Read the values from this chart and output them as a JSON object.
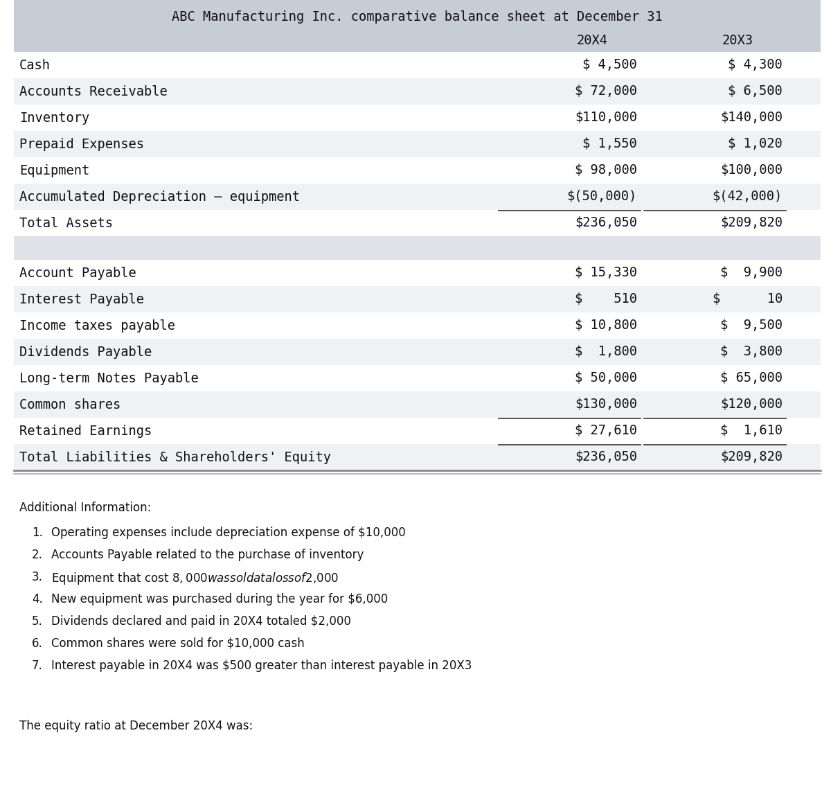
{
  "title": "ABC Manufacturing Inc. comparative balance sheet at December 31",
  "col_headers": [
    "20X4",
    "20X3"
  ],
  "header_bg": "#c8ccd6",
  "row_bg_odd": "#f0f1f5",
  "row_bg_even": "#ffffff",
  "gap_bg": "#e0e2e8",
  "assets_rows": [
    [
      "Cash",
      "$ 4,500",
      "$ 4,300"
    ],
    [
      "Accounts Receivable",
      "$ 72,000",
      "$ 6,500"
    ],
    [
      "Inventory",
      "$110,000",
      "$140,000"
    ],
    [
      "Prepaid Expenses",
      "$ 1,550",
      "$ 1,020"
    ],
    [
      "Equipment",
      "$ 98,000",
      "$100,000"
    ],
    [
      "Accumulated Depreciation – equipment",
      "$(50,000)",
      "$(42,000)"
    ],
    [
      "Total Assets",
      "$236,050",
      "$209,820"
    ]
  ],
  "liabilities_rows": [
    [
      "Account Payable",
      "$ 15,330",
      "$  9,900"
    ],
    [
      "Interest Payable",
      "$    510",
      "$      10"
    ],
    [
      "Income taxes payable",
      "$ 10,800",
      "$  9,500"
    ],
    [
      "Dividends Payable",
      "$  1,800",
      "$  3,800"
    ],
    [
      "Long-term Notes Payable",
      "$ 50,000",
      "$ 65,000"
    ],
    [
      "Common shares",
      "$130,000",
      "$120,000"
    ],
    [
      "Retained Earnings",
      "$ 27,610",
      "$  1,610"
    ],
    [
      "Total Liabilities & Shareholders' Equity",
      "$236,050",
      "$209,820"
    ]
  ],
  "additional_info_title": "Additional Information:",
  "additional_info": [
    "Operating expenses include depreciation expense of $10,000",
    "Accounts Payable related to the purchase of inventory",
    "Equipment that cost $8,000 was sold at a loss of $2,000",
    "New equipment was purchased during the year for $6,000",
    "Dividends declared and paid in 20X4 totaled $2,000",
    "Common shares were sold for $10,000 cash",
    "Interest payable in 20X4 was $500 greater than interest payable in 20X3"
  ],
  "footer": "The equity ratio at December 20X4 was:"
}
